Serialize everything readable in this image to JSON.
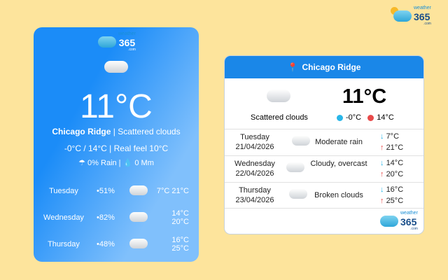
{
  "brand": {
    "word": "weather",
    "number": "365",
    "suffix": ".com"
  },
  "left_widget": {
    "temperature": "11°C",
    "location": "Chicago Ridge",
    "condition": "Scattered clouds",
    "min_max": "-0°C / 14°C",
    "real_feel": "Real feel 10°C",
    "rain": "0% Rain",
    "precip": "0 Mm",
    "forecast": [
      {
        "day": "Tuesday",
        "chance": "51%",
        "icon": "rain-cloud-icon",
        "low": "7°C",
        "high": "21°C"
      },
      {
        "day": "Wednesday",
        "chance": "82%",
        "icon": "cloud-icon",
        "low": "14°C",
        "high": "20°C"
      },
      {
        "day": "Thursday",
        "chance": "48%",
        "icon": "cloud-icon",
        "low": "16°C",
        "high": "25°C"
      }
    ]
  },
  "right_widget": {
    "location": "Chicago Ridge",
    "temperature": "11°C",
    "condition": "Scattered clouds",
    "min": "-0°C",
    "max": "14°C",
    "forecast": [
      {
        "day": "Tuesday",
        "date": "21/04/2026",
        "condition": "Moderate rain",
        "icon": "rain-cloud-icon",
        "low": "7°C",
        "high": "21°C"
      },
      {
        "day": "Wednesday",
        "date": "22/04/2026",
        "condition": "Cloudy, overcast",
        "icon": "cloud-icon",
        "low": "14°C",
        "high": "20°C"
      },
      {
        "day": "Thursday",
        "date": "23/04/2026",
        "condition": "Broken clouds",
        "icon": "cloud-icon",
        "low": "16°C",
        "high": "25°C"
      }
    ]
  },
  "colors": {
    "background": "#fde49c",
    "header": "#1a87e8",
    "down": "#29b6e8",
    "up": "#e84a4a"
  }
}
